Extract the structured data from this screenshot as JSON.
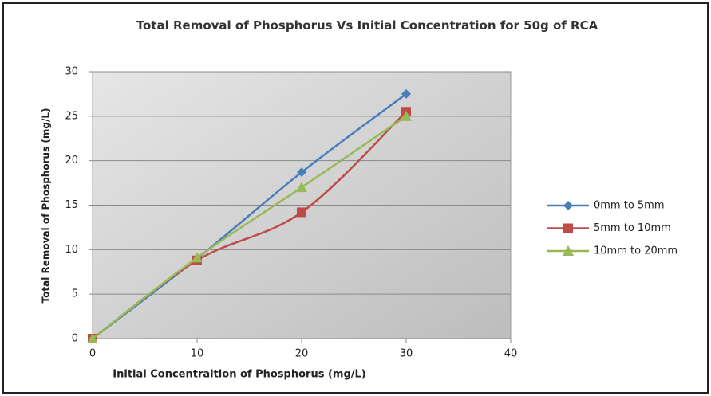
{
  "chart_data": {
    "type": "line",
    "title": "Total Removal of Phosphorus Vs Initial Concentration for 50g of RCA",
    "x_label": "Initial Concentraition of Phosphorus (mg/L)",
    "y_label": "Total Removal of Phosphorus (mg/L)",
    "x": [
      0,
      10,
      20,
      30
    ],
    "series": [
      {
        "name": "0mm to 5mm",
        "color": "#4a7ebb",
        "marker": "diamond",
        "values": [
          0,
          9,
          18.7,
          27.5
        ]
      },
      {
        "name": "5mm to 10mm",
        "color": "#be4b48",
        "marker": "square",
        "values": [
          0,
          8.8,
          14.2,
          25.5
        ]
      },
      {
        "name": "10mm to 20mm",
        "color": "#98b954",
        "marker": "triangle",
        "values": [
          0,
          9.1,
          17,
          25
        ]
      }
    ],
    "xlim": [
      0,
      40
    ],
    "xticks": [
      0,
      10,
      20,
      30,
      40
    ],
    "ylim": [
      0,
      30
    ],
    "yticks": [
      0,
      5,
      10,
      15,
      20,
      25,
      30
    ],
    "grid": true,
    "legend": "right"
  }
}
